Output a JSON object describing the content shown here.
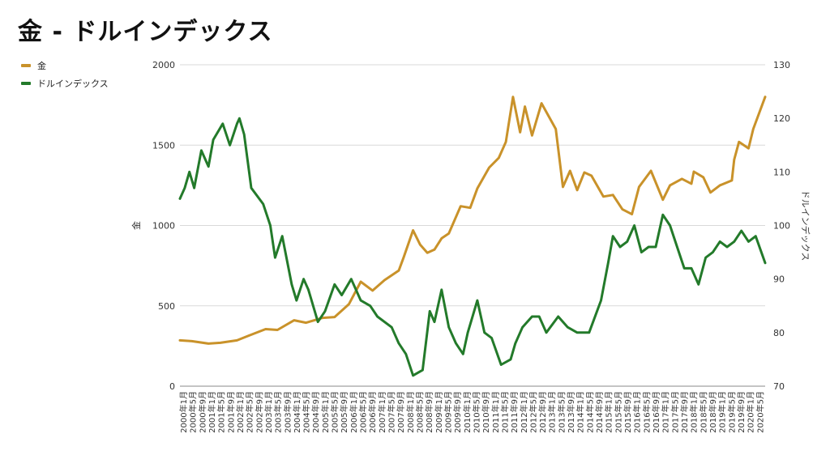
{
  "chart_data": {
    "type": "line",
    "title": "金 - ドルインデックス",
    "ylabel_left": "金",
    "ylabel_right": "ドルインデックス",
    "ylim_left": [
      0,
      2000
    ],
    "ylim_right": [
      70,
      130
    ],
    "yticks_left": [
      "0",
      "500",
      "1000",
      "1500",
      "2000"
    ],
    "yticks_right": [
      "70",
      "80",
      "90",
      "100",
      "110",
      "120",
      "130"
    ],
    "grid": true,
    "legend_position": "top-left",
    "x_start": "2000-01",
    "x_end": "2020-07",
    "xtick_labels": [
      "2000年1月",
      "2000年5月",
      "2000年9月",
      "2001年1月",
      "2001年5月",
      "2001年9月",
      "2002年1月",
      "2002年5月",
      "2002年9月",
      "2003年1月",
      "2003年5月",
      "2003年9月",
      "2004年1月",
      "2004年5月",
      "2004年9月",
      "2005年1月",
      "2005年5月",
      "2005年9月",
      "2006年1月",
      "2006年5月",
      "2006年9月",
      "2007年1月",
      "2007年5月",
      "2007年9月",
      "2008年1月",
      "2008年5月",
      "2008年9月",
      "2009年1月",
      "2009年5月",
      "2009年9月",
      "2010年1月",
      "2010年5月",
      "2010年9月",
      "2011年1月",
      "2011年5月",
      "2011年9月",
      "2012年1月",
      "2012年5月",
      "2012年9月",
      "2013年1月",
      "2013年5月",
      "2013年9月",
      "2014年1月",
      "2014年5月",
      "2014年9月",
      "2015年1月",
      "2015年5月",
      "2015年9月",
      "2016年1月",
      "2016年5月",
      "2016年9月",
      "2017年1月",
      "2017年5月",
      "2017年9月",
      "2018年1月",
      "2018年5月",
      "2018年9月",
      "2019年1月",
      "2019年5月",
      "2019年9月",
      "2020年1月",
      "2020年5月"
    ],
    "series": [
      {
        "name": "金",
        "axis": "left",
        "color": "#c9922a",
        "points": [
          [
            "2000-01",
            285
          ],
          [
            "2000-06",
            280
          ],
          [
            "2001-01",
            265
          ],
          [
            "2001-06",
            270
          ],
          [
            "2002-01",
            285
          ],
          [
            "2002-06",
            315
          ],
          [
            "2003-01",
            355
          ],
          [
            "2003-06",
            350
          ],
          [
            "2004-01",
            410
          ],
          [
            "2004-06",
            395
          ],
          [
            "2005-01",
            425
          ],
          [
            "2005-06",
            430
          ],
          [
            "2005-12",
            510
          ],
          [
            "2006-05",
            650
          ],
          [
            "2006-10",
            595
          ],
          [
            "2007-03",
            660
          ],
          [
            "2007-09",
            720
          ],
          [
            "2007-11",
            800
          ],
          [
            "2008-03",
            970
          ],
          [
            "2008-06",
            880
          ],
          [
            "2008-09",
            830
          ],
          [
            "2008-12",
            850
          ],
          [
            "2009-03",
            920
          ],
          [
            "2009-06",
            950
          ],
          [
            "2009-11",
            1120
          ],
          [
            "2010-03",
            1110
          ],
          [
            "2010-06",
            1230
          ],
          [
            "2010-11",
            1360
          ],
          [
            "2011-03",
            1420
          ],
          [
            "2011-06",
            1520
          ],
          [
            "2011-09",
            1800
          ],
          [
            "2011-12",
            1580
          ],
          [
            "2012-02",
            1740
          ],
          [
            "2012-05",
            1560
          ],
          [
            "2012-09",
            1760
          ],
          [
            "2012-12",
            1680
          ],
          [
            "2013-03",
            1600
          ],
          [
            "2013-06",
            1240
          ],
          [
            "2013-09",
            1340
          ],
          [
            "2013-12",
            1220
          ],
          [
            "2014-03",
            1330
          ],
          [
            "2014-06",
            1310
          ],
          [
            "2014-11",
            1180
          ],
          [
            "2015-03",
            1190
          ],
          [
            "2015-07",
            1100
          ],
          [
            "2015-11",
            1070
          ],
          [
            "2016-02",
            1240
          ],
          [
            "2016-07",
            1340
          ],
          [
            "2016-12",
            1160
          ],
          [
            "2017-03",
            1250
          ],
          [
            "2017-08",
            1290
          ],
          [
            "2017-12",
            1260
          ],
          [
            "2018-01",
            1335
          ],
          [
            "2018-05",
            1300
          ],
          [
            "2018-08",
            1205
          ],
          [
            "2018-12",
            1250
          ],
          [
            "2019-05",
            1280
          ],
          [
            "2019-06",
            1410
          ],
          [
            "2019-08",
            1520
          ],
          [
            "2019-12",
            1480
          ],
          [
            "2020-02",
            1600
          ],
          [
            "2020-05",
            1720
          ],
          [
            "2020-07",
            1800
          ]
        ]
      },
      {
        "name": "ドルインデックス",
        "axis": "right",
        "color": "#237a2a",
        "points": [
          [
            "2000-01",
            105
          ],
          [
            "2000-03",
            107
          ],
          [
            "2000-05",
            110
          ],
          [
            "2000-07",
            107
          ],
          [
            "2000-10",
            114
          ],
          [
            "2001-01",
            111
          ],
          [
            "2001-03",
            116
          ],
          [
            "2001-07",
            119
          ],
          [
            "2001-10",
            115
          ],
          [
            "2002-01",
            119
          ],
          [
            "2002-02",
            120
          ],
          [
            "2002-04",
            117
          ],
          [
            "2002-07",
            107
          ],
          [
            "2002-12",
            104
          ],
          [
            "2003-03",
            100
          ],
          [
            "2003-05",
            94
          ],
          [
            "2003-08",
            98
          ],
          [
            "2003-12",
            89
          ],
          [
            "2004-02",
            86
          ],
          [
            "2004-05",
            90
          ],
          [
            "2004-07",
            88
          ],
          [
            "2004-11",
            82
          ],
          [
            "2005-02",
            84
          ],
          [
            "2005-06",
            89
          ],
          [
            "2005-09",
            87
          ],
          [
            "2006-01",
            90
          ],
          [
            "2006-05",
            86
          ],
          [
            "2006-09",
            85
          ],
          [
            "2006-12",
            83
          ],
          [
            "2007-06",
            81
          ],
          [
            "2007-09",
            78
          ],
          [
            "2007-12",
            76
          ],
          [
            "2008-03",
            72
          ],
          [
            "2008-07",
            73
          ],
          [
            "2008-10",
            84
          ],
          [
            "2008-12",
            82
          ],
          [
            "2009-03",
            88
          ],
          [
            "2009-06",
            81
          ],
          [
            "2009-09",
            78
          ],
          [
            "2009-12",
            76
          ],
          [
            "2010-02",
            80
          ],
          [
            "2010-06",
            86
          ],
          [
            "2010-09",
            80
          ],
          [
            "2010-12",
            79
          ],
          [
            "2011-04",
            74
          ],
          [
            "2011-08",
            75
          ],
          [
            "2011-10",
            78
          ],
          [
            "2012-01",
            81
          ],
          [
            "2012-05",
            83
          ],
          [
            "2012-08",
            83
          ],
          [
            "2012-11",
            80
          ],
          [
            "2013-04",
            83
          ],
          [
            "2013-08",
            81
          ],
          [
            "2013-12",
            80
          ],
          [
            "2014-05",
            80
          ],
          [
            "2014-10",
            86
          ],
          [
            "2015-01",
            93
          ],
          [
            "2015-03",
            98
          ],
          [
            "2015-06",
            96
          ],
          [
            "2015-09",
            97
          ],
          [
            "2015-12",
            100
          ],
          [
            "2016-03",
            95
          ],
          [
            "2016-06",
            96
          ],
          [
            "2016-09",
            96
          ],
          [
            "2016-12",
            102
          ],
          [
            "2017-03",
            100
          ],
          [
            "2017-06",
            96
          ],
          [
            "2017-09",
            92
          ],
          [
            "2017-12",
            92
          ],
          [
            "2018-03",
            89
          ],
          [
            "2018-06",
            94
          ],
          [
            "2018-09",
            95
          ],
          [
            "2018-12",
            97
          ],
          [
            "2019-03",
            96
          ],
          [
            "2019-06",
            97
          ],
          [
            "2019-09",
            99
          ],
          [
            "2019-12",
            97
          ],
          [
            "2020-03",
            98
          ],
          [
            "2020-07",
            93
          ]
        ]
      }
    ]
  }
}
